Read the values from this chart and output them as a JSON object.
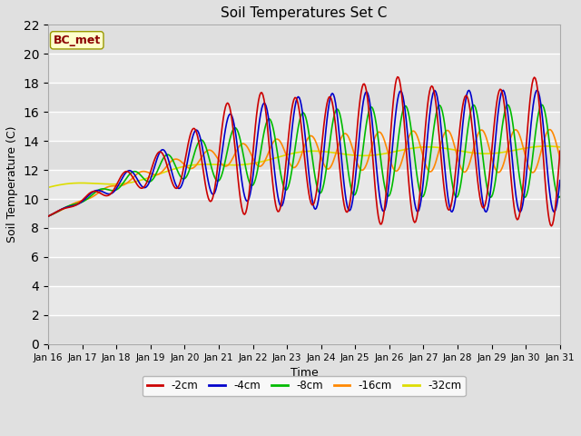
{
  "title": "Soil Temperatures Set C",
  "xlabel": "Time",
  "ylabel": "Soil Temperature (C)",
  "annotation": "BC_met",
  "ylim": [
    0,
    22
  ],
  "yticks": [
    0,
    2,
    4,
    6,
    8,
    10,
    12,
    14,
    16,
    18,
    20,
    22
  ],
  "background_color": "#e8e8e8",
  "plot_bg_color": "#e8e8e8",
  "series_colors": {
    "-2cm": "#cc0000",
    "-4cm": "#0000cc",
    "-8cm": "#00bb00",
    "-16cm": "#ff8800",
    "-32cm": "#dddd00"
  },
  "line_width": 1.2,
  "x_labels": [
    "Jan 16",
    "Jan 17",
    "Jan 18",
    "Jan 19",
    "Jan 20",
    "Jan 21",
    "Jan 22",
    "Jan 23",
    "Jan 24",
    "Jan 25",
    "Jan 26",
    "Jan 27",
    "Jan 28",
    "Jan 29",
    "Jan 30",
    "Jan 31"
  ],
  "num_points": 480
}
